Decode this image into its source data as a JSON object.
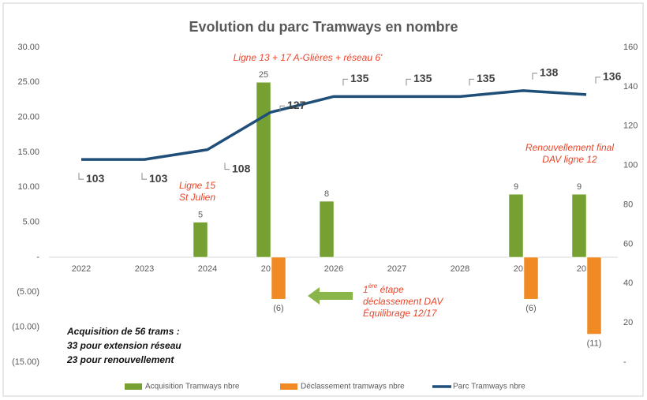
{
  "chart_data": {
    "type": "bar",
    "title": "Evolution du parc Tramways en nombre",
    "categories": [
      "2022",
      "2023",
      "2024",
      "2025",
      "2026",
      "2027",
      "2028",
      "2029",
      "2030"
    ],
    "series": [
      {
        "name": "Acquisition Tramways nbre",
        "type": "bar",
        "color": "#77a033",
        "values": [
          null,
          null,
          5,
          25,
          8,
          null,
          null,
          9,
          9
        ]
      },
      {
        "name": "Déclassement tramways nbre",
        "type": "bar",
        "color": "#f08a24",
        "values": [
          null,
          null,
          null,
          -6,
          null,
          null,
          null,
          -6,
          -11
        ],
        "value_labels": [
          null,
          null,
          null,
          "(6)",
          null,
          null,
          null,
          "(6)",
          "(11)"
        ]
      },
      {
        "name": "Parc Tramways  nbre",
        "type": "line",
        "axis": "y2",
        "color": "#1f4e79",
        "values": [
          103,
          103,
          108,
          127,
          135,
          135,
          135,
          138,
          136
        ]
      }
    ],
    "ylim": [
      -15,
      30
    ],
    "yticks": [
      {
        "value": 30,
        "label": "30.00"
      },
      {
        "value": 25,
        "label": "25.00"
      },
      {
        "value": 20,
        "label": "20.00"
      },
      {
        "value": 15,
        "label": "15.00"
      },
      {
        "value": 10,
        "label": "10.00"
      },
      {
        "value": 5,
        "label": "5.00"
      },
      {
        "value": 0,
        "label": "-"
      },
      {
        "value": -5,
        "label": "(5.00)"
      },
      {
        "value": -10,
        "label": "(10.00)"
      },
      {
        "value": -15,
        "label": "(15.00)"
      }
    ],
    "y2lim": [
      0,
      160
    ],
    "y2ticks": [
      160,
      140,
      120,
      100,
      80,
      60,
      40,
      20,
      {
        "value": 0,
        "label": "-"
      }
    ],
    "grid": false,
    "legend": "bottom",
    "annotations": {
      "ligne13": "Ligne 13 + 17 A-Glières + réseau 6'",
      "ligne15": [
        "Ligne 15",
        "St Julien"
      ],
      "renouvellement": [
        "Renouvellement final",
        "DAV ligne 12"
      ],
      "etape": {
        "number": "1",
        "superscript": "ère",
        "rest": " étape",
        "lines": [
          "déclassement DAV",
          "Équilibrage 12/17"
        ]
      },
      "acquisition": [
        "Acquisition de 56 trams :",
        "33 pour extension réseau",
        "23 pour renouvellement"
      ]
    }
  }
}
